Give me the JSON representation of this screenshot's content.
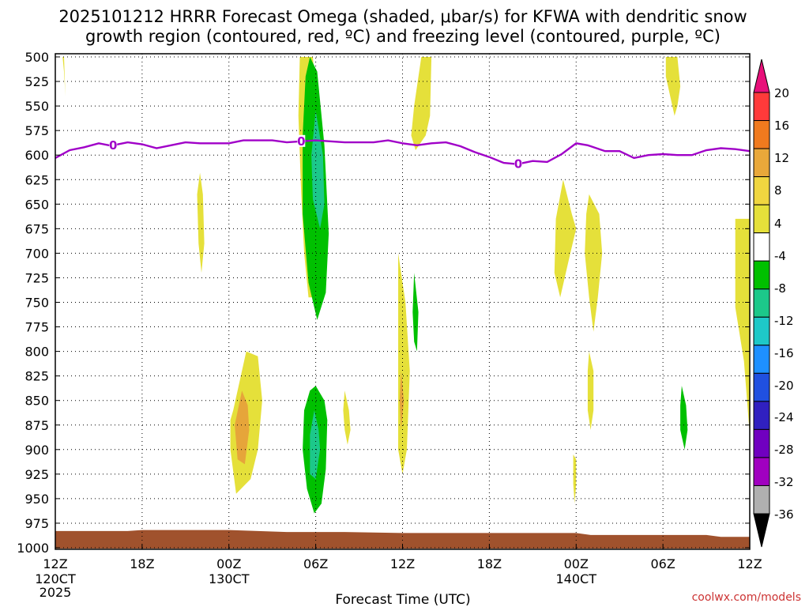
{
  "title_line1": "2025101212 HRRR Forecast Omega (shaded, μbar/s) for KFWA with dendritic snow",
  "title_line2": "growth region (contoured, red, ºC) and freezing level (contoured, purple, ºC)",
  "watermark": "coolwx.com/models",
  "chart_data": {
    "type": "heatmap",
    "title": "2025101212 HRRR Forecast Omega (shaded, μbar/s) for KFWA with dendritic snow growth region (contoured, red, ºC) and freezing level (contoured, purple, ºC)",
    "xlabel": "Forecast Time (UTC)",
    "ylabel": "",
    "x_unit": "hours from 2025-10-12 12Z",
    "xlim": [
      0,
      48
    ],
    "y_unit": "mb",
    "ylim": [
      1000,
      500
    ],
    "grid": true,
    "x_ticks": [
      {
        "h": 0,
        "label": "12Z",
        "sub": "120CT",
        "sub2": "2025"
      },
      {
        "h": 6,
        "label": "18Z",
        "sub": "",
        "sub2": ""
      },
      {
        "h": 12,
        "label": "00Z",
        "sub": "130CT",
        "sub2": ""
      },
      {
        "h": 18,
        "label": "06Z",
        "sub": "",
        "sub2": ""
      },
      {
        "h": 24,
        "label": "12Z",
        "sub": "",
        "sub2": ""
      },
      {
        "h": 30,
        "label": "18Z",
        "sub": "",
        "sub2": ""
      },
      {
        "h": 36,
        "label": "00Z",
        "sub": "140CT",
        "sub2": ""
      },
      {
        "h": 42,
        "label": "06Z",
        "sub": "",
        "sub2": ""
      },
      {
        "h": 48,
        "label": "12Z",
        "sub": "",
        "sub2": ""
      }
    ],
    "y_ticks": [
      500,
      525,
      550,
      575,
      600,
      625,
      650,
      675,
      700,
      725,
      750,
      775,
      800,
      825,
      850,
      875,
      900,
      925,
      950,
      975,
      1000
    ],
    "colorbar": {
      "labels": [
        "20",
        "16",
        "12",
        "8",
        "4",
        "-4",
        "-8",
        "-12",
        "-16",
        "-20",
        "-24",
        "-28",
        "-32",
        "-36"
      ],
      "colors": [
        "#e8107a",
        "#ff3a3a",
        "#f07a1e",
        "#e9a83a",
        "#f0d640",
        "#e5e03a",
        "#ffffff",
        "#00c000",
        "#1cc88a",
        "#1ec8c8",
        "#1e90ff",
        "#2050e0",
        "#3020c0",
        "#7000c0",
        "#a000c0",
        "#b0b0b0",
        "#000000"
      ]
    },
    "freezing_level": {
      "name": "0",
      "points": [
        [
          0,
          603
        ],
        [
          1,
          595
        ],
        [
          2,
          592
        ],
        [
          3,
          588
        ],
        [
          3.7,
          590
        ],
        [
          4,
          590
        ],
        [
          5,
          587
        ],
        [
          6,
          589
        ],
        [
          7,
          593
        ],
        [
          8,
          590
        ],
        [
          9,
          587
        ],
        [
          10,
          588
        ],
        [
          11,
          588
        ],
        [
          12,
          588
        ],
        [
          13,
          585
        ],
        [
          14,
          585
        ],
        [
          15,
          585
        ],
        [
          16,
          587
        ],
        [
          17,
          586
        ],
        [
          18,
          585
        ],
        [
          19,
          586
        ],
        [
          20,
          587
        ],
        [
          21,
          587
        ],
        [
          22,
          587
        ],
        [
          23,
          585
        ],
        [
          24,
          588
        ],
        [
          25,
          590
        ],
        [
          26,
          588
        ],
        [
          27,
          587
        ],
        [
          28,
          591
        ],
        [
          29,
          597
        ],
        [
          30,
          602
        ],
        [
          31,
          608
        ],
        [
          31.8,
          609
        ],
        [
          32,
          609
        ],
        [
          33,
          606
        ],
        [
          34,
          607
        ],
        [
          35,
          599
        ],
        [
          36,
          588
        ],
        [
          36.8,
          590
        ],
        [
          37,
          591
        ],
        [
          38,
          596
        ],
        [
          39,
          596
        ],
        [
          40,
          603
        ],
        [
          41,
          600
        ],
        [
          42,
          599
        ],
        [
          43,
          600
        ],
        [
          44,
          600
        ],
        [
          45,
          595
        ],
        [
          46,
          593
        ],
        [
          47,
          594
        ],
        [
          48,
          596
        ]
      ],
      "labels_at_hours": [
        4,
        17,
        32
      ]
    },
    "ground": {
      "points": [
        [
          0,
          983
        ],
        [
          5,
          983
        ],
        [
          6,
          982
        ],
        [
          11,
          982
        ],
        [
          12,
          982
        ],
        [
          14,
          983
        ],
        [
          16,
          984
        ],
        [
          20,
          984
        ],
        [
          24,
          985
        ],
        [
          30,
          985
        ],
        [
          36,
          985
        ],
        [
          37,
          987
        ],
        [
          45,
          987
        ],
        [
          46,
          989
        ],
        [
          48,
          989
        ]
      ]
    },
    "omega_regions": [
      {
        "level": "4",
        "outline": [
          [
            16.9,
            500
          ],
          [
            17.8,
            500
          ],
          [
            18.1,
            560
          ],
          [
            18.3,
            640
          ],
          [
            18.3,
            700
          ],
          [
            18.1,
            745
          ],
          [
            17.5,
            745
          ],
          [
            17.2,
            700
          ],
          [
            17,
            640
          ],
          [
            16.8,
            560
          ]
        ]
      },
      {
        "level": "-8",
        "outline": [
          [
            17.6,
            500
          ],
          [
            18.1,
            515
          ],
          [
            18.6,
            590
          ],
          [
            18.9,
            680
          ],
          [
            18.7,
            740
          ],
          [
            18.1,
            768
          ],
          [
            17.5,
            730
          ],
          [
            17.1,
            660
          ],
          [
            17.1,
            580
          ],
          [
            17.3,
            520
          ]
        ]
      },
      {
        "level": "-12",
        "outline": [
          [
            18,
            555
          ],
          [
            18.5,
            600
          ],
          [
            18.6,
            650
          ],
          [
            18.3,
            675
          ],
          [
            17.8,
            645
          ],
          [
            17.7,
            600
          ]
        ]
      },
      {
        "level": "4",
        "outline": [
          [
            0.5,
            500
          ],
          [
            0.6,
            500
          ],
          [
            0.7,
            540
          ],
          [
            0.6,
            515
          ]
        ]
      },
      {
        "level": "4",
        "outline": [
          [
            25.3,
            500
          ],
          [
            26,
            500
          ],
          [
            25.9,
            560
          ],
          [
            25.6,
            580
          ],
          [
            24.9,
            595
          ],
          [
            24.6,
            580
          ],
          [
            24.8,
            550
          ]
        ]
      },
      {
        "level": "4",
        "outline": [
          [
            42.2,
            500
          ],
          [
            43,
            500
          ],
          [
            43.2,
            530
          ],
          [
            43,
            550
          ],
          [
            42.8,
            560
          ],
          [
            42.5,
            540
          ],
          [
            42.2,
            520
          ]
        ]
      },
      {
        "level": "4",
        "outline": [
          [
            10,
            618
          ],
          [
            10.2,
            640
          ],
          [
            10.3,
            690
          ],
          [
            10.1,
            720
          ],
          [
            9.9,
            690
          ],
          [
            9.8,
            640
          ]
        ]
      },
      {
        "level": "4",
        "outline": [
          [
            35.1,
            625
          ],
          [
            35.7,
            660
          ],
          [
            36,
            675
          ],
          [
            35.6,
            700
          ],
          [
            34.9,
            745
          ],
          [
            34.5,
            720
          ],
          [
            34.6,
            665
          ]
        ]
      },
      {
        "level": "4",
        "outline": [
          [
            36.9,
            640
          ],
          [
            37.6,
            660
          ],
          [
            37.8,
            700
          ],
          [
            37.5,
            745
          ],
          [
            37.2,
            780
          ],
          [
            36.9,
            745
          ],
          [
            36.6,
            700
          ],
          [
            36.7,
            660
          ]
        ]
      },
      {
        "level": "4",
        "outline": [
          [
            36.9,
            800
          ],
          [
            37.2,
            820
          ],
          [
            37.2,
            860
          ],
          [
            37,
            880
          ],
          [
            36.8,
            860
          ],
          [
            36.8,
            820
          ]
        ]
      },
      {
        "level": "4",
        "outline": [
          [
            47,
            665
          ],
          [
            48,
            665
          ],
          [
            48,
            885
          ],
          [
            47.6,
            810
          ],
          [
            47,
            755
          ],
          [
            47,
            700
          ]
        ]
      },
      {
        "level": "4",
        "outline": [
          [
            23.7,
            700
          ],
          [
            24.2,
            750
          ],
          [
            24.5,
            820
          ],
          [
            24.3,
            900
          ],
          [
            24,
            925
          ],
          [
            23.7,
            900
          ],
          [
            23.7,
            800
          ]
        ]
      },
      {
        "level": "8",
        "outline": [
          [
            23.9,
            820
          ],
          [
            24.1,
            850
          ],
          [
            23.9,
            880
          ],
          [
            23.8,
            850
          ]
        ]
      },
      {
        "level": "-8",
        "outline": [
          [
            24.8,
            720
          ],
          [
            25.1,
            760
          ],
          [
            25,
            800
          ],
          [
            24.8,
            790
          ],
          [
            24.7,
            760
          ]
        ]
      },
      {
        "level": "4",
        "outline": [
          [
            12.3,
            860
          ],
          [
            13.2,
            800
          ],
          [
            14,
            805
          ],
          [
            14.3,
            850
          ],
          [
            14,
            900
          ],
          [
            13.5,
            930
          ],
          [
            12.5,
            945
          ],
          [
            12.1,
            900
          ],
          [
            12.1,
            870
          ]
        ]
      },
      {
        "level": "8",
        "outline": [
          [
            12.4,
            875
          ],
          [
            12.9,
            840
          ],
          [
            13.3,
            855
          ],
          [
            13.4,
            880
          ],
          [
            13.1,
            915
          ],
          [
            12.6,
            910
          ]
        ]
      },
      {
        "level": "4",
        "outline": [
          [
            20,
            840
          ],
          [
            20.3,
            860
          ],
          [
            20.4,
            880
          ],
          [
            20.2,
            895
          ],
          [
            20,
            880
          ],
          [
            19.9,
            860
          ]
        ]
      },
      {
        "level": "-8",
        "outline": [
          [
            18,
            835
          ],
          [
            18.6,
            850
          ],
          [
            18.8,
            870
          ],
          [
            18.7,
            920
          ],
          [
            18.4,
            955
          ],
          [
            17.9,
            965
          ],
          [
            17.4,
            940
          ],
          [
            17.1,
            900
          ],
          [
            17.2,
            860
          ],
          [
            17.6,
            840
          ]
        ]
      },
      {
        "level": "-12",
        "outline": [
          [
            17.9,
            860
          ],
          [
            18.2,
            880
          ],
          [
            18.3,
            900
          ],
          [
            18,
            930
          ],
          [
            17.6,
            925
          ],
          [
            17.6,
            885
          ]
        ]
      },
      {
        "level": "4",
        "outline": [
          [
            35.8,
            905
          ],
          [
            36,
            910
          ],
          [
            36,
            935
          ],
          [
            35.9,
            955
          ],
          [
            35.8,
            935
          ]
        ]
      },
      {
        "level": "-8",
        "outline": [
          [
            43.3,
            835
          ],
          [
            43.6,
            855
          ],
          [
            43.7,
            880
          ],
          [
            43.5,
            900
          ],
          [
            43.2,
            880
          ],
          [
            43.2,
            855
          ]
        ]
      }
    ]
  }
}
